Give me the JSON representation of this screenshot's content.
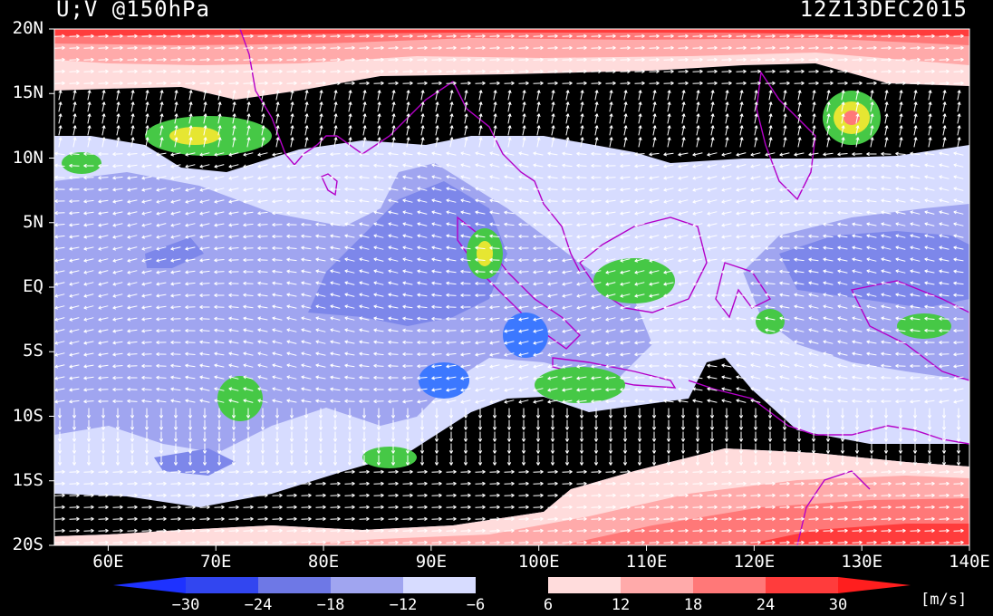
{
  "header": {
    "variable": "U;V @150hPa",
    "datetime": "12Z13DEC2015"
  },
  "map": {
    "lon_range": [
      55,
      140
    ],
    "lat_range": [
      -20,
      20
    ],
    "lat_labels": [
      "20N",
      "15N",
      "10N",
      "5N",
      "EQ",
      "5S",
      "10S",
      "15S",
      "20S"
    ],
    "lon_labels": [
      "60E",
      "70E",
      "80E",
      "90E",
      "100E",
      "110E",
      "120E",
      "130E",
      "140E"
    ]
  },
  "colorbar": {
    "ticks": [
      "−30",
      "−24",
      "−18",
      "−12",
      "−6",
      "6",
      "12",
      "18",
      "24",
      "30"
    ],
    "colors": [
      "#1e32ff",
      "#3246f0",
      "#6e78e6",
      "#a0a5f0",
      "#d7dcff",
      "#000000",
      "#ffdcdc",
      "#ffaaaa",
      "#ff7878",
      "#ff3c3c",
      "#ff1e1e"
    ],
    "units": "[m/s]"
  },
  "palette": {
    "neg6": "#d7dcff",
    "neg12": "#a0a5f0",
    "neg18": "#7d87ea",
    "zero": "#000000",
    "pos6": "#ffdcdc",
    "pos12": "#ffaaaa",
    "pos18": "#ff7878",
    "pos24": "#ff3c3c",
    "precip_green": "#46c846",
    "precip_yellow": "#e6e632",
    "precip_blue": "#3c78ff",
    "precip_cyan": "#1ed2d2",
    "coast": "#b400c8"
  }
}
